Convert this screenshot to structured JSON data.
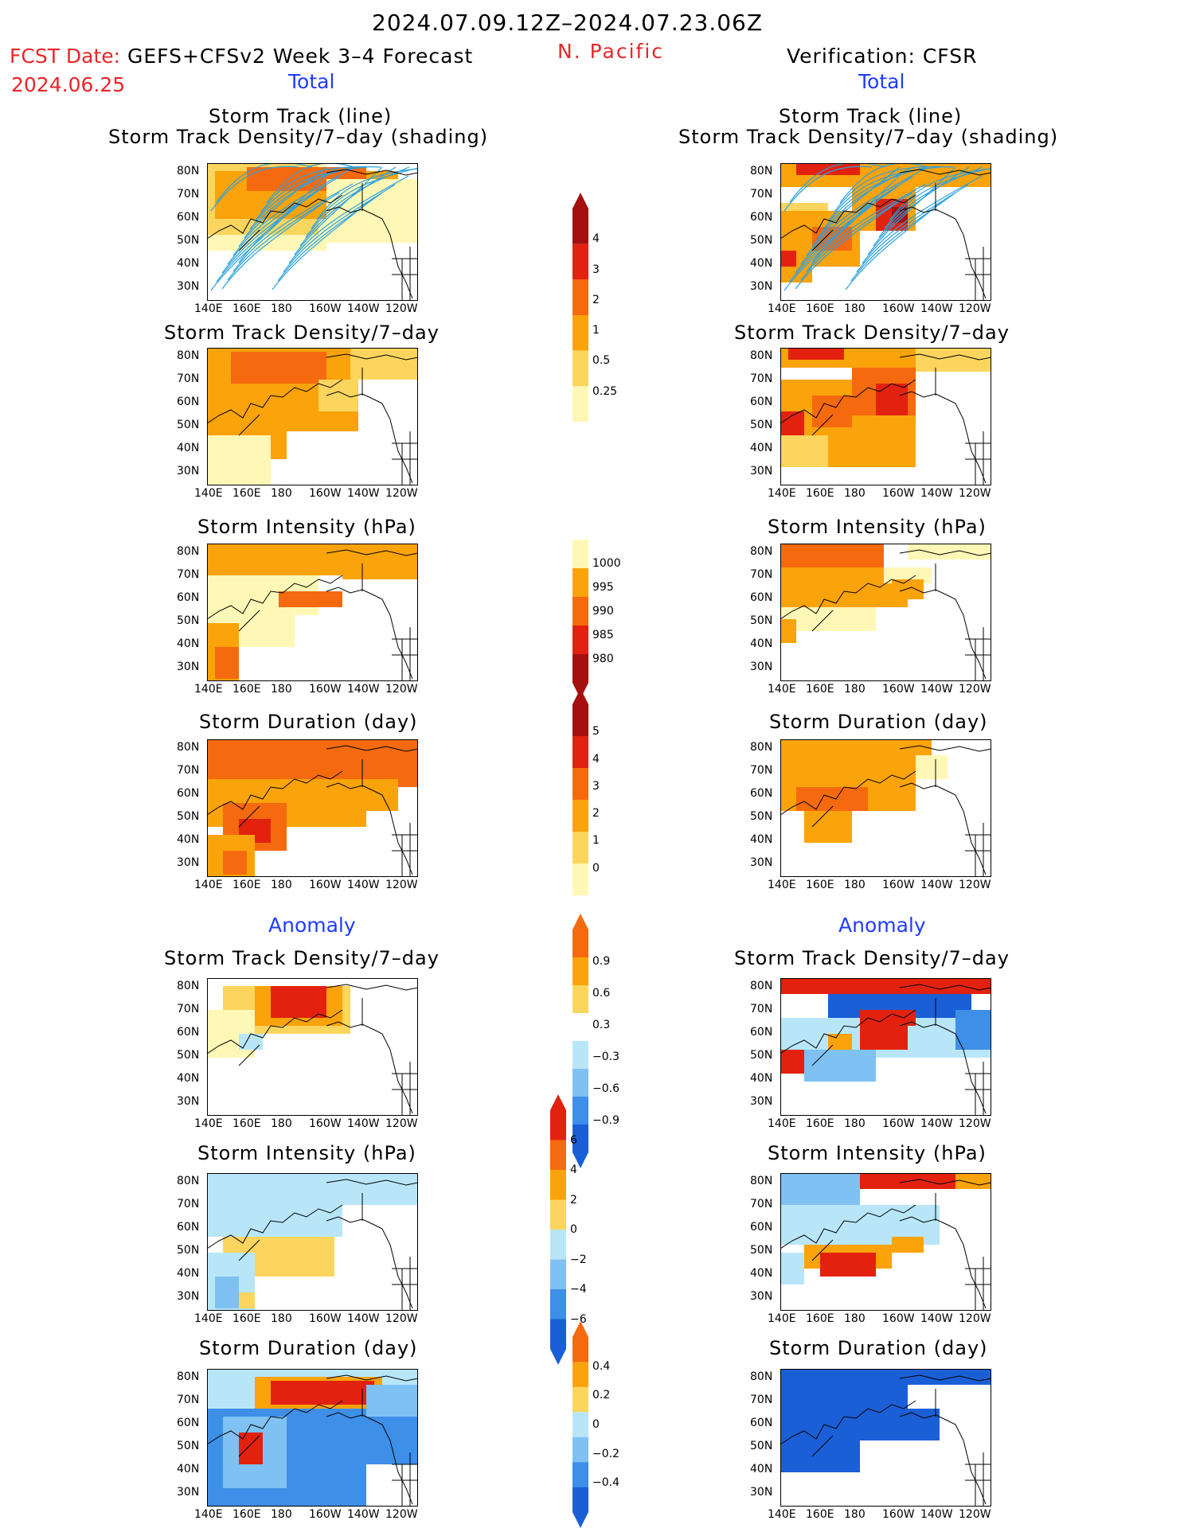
{
  "header": {
    "date_range": "2024.07.09.12Z–2024.07.23.06Z",
    "fcst_label": "FCST Date:",
    "fcst_date": "2024.06.25",
    "model": "GEFS+CFSv2 Week 3–4 Forecast",
    "region": "N. Pacific",
    "verification": "Verification: CFSR"
  },
  "sections": {
    "total": "Total",
    "anomaly": "Anomaly"
  },
  "panel_titles": {
    "track_line": "Storm Track (line)",
    "track_shading": "Storm Track Density/7–day (shading)",
    "density": "Storm Track Density/7–day",
    "intensity": "Storm Intensity (hPa)",
    "duration": "Storm Duration (day)"
  },
  "axes": {
    "lat_labels": [
      "80N",
      "70N",
      "60N",
      "50N",
      "40N",
      "30N"
    ],
    "lon_labels": [
      "140E",
      "160E",
      "180",
      "160W",
      "140W",
      "120W"
    ]
  },
  "colorbars": [
    {
      "id": "density_total",
      "ticks": [
        "4",
        "3",
        "2",
        "1",
        "0.5",
        "0.25"
      ],
      "colors": [
        "#a50f0f",
        "#e2220f",
        "#f56a0e",
        "#fba30a",
        "#fbd55e",
        "#fff7b6"
      ]
    },
    {
      "id": "intensity_total",
      "ticks": [
        "1000",
        "995",
        "990",
        "985",
        "980"
      ],
      "colors": [
        "#fff7b6",
        "#fba30a",
        "#f56a0e",
        "#e2220f",
        "#a50f0f"
      ]
    },
    {
      "id": "duration_total",
      "ticks": [
        "5",
        "4",
        "3",
        "2",
        "1",
        "0"
      ],
      "colors": [
        "#a50f0f",
        "#e2220f",
        "#f56a0e",
        "#fba30a",
        "#fbd55e",
        "#fff7b6"
      ]
    },
    {
      "id": "density_anom",
      "ticks": [
        "0.9",
        "0.6",
        "0.3",
        "−0.3",
        "−0.6",
        "−0.9"
      ],
      "colors": [
        "#f56a0e",
        "#fba30a",
        "#fbd55e",
        "#ffffff",
        "#b8e6f8",
        "#7fc1f2",
        "#3d8fe8",
        "#1a5fd6"
      ]
    },
    {
      "id": "intensity_anom",
      "ticks": [
        "6",
        "4",
        "2",
        "0",
        "−2",
        "−4",
        "−6"
      ],
      "colors": [
        "#e2220f",
        "#f56a0e",
        "#fba30a",
        "#fbd55e",
        "#b8e6f8",
        "#7fc1f2",
        "#3d8fe8",
        "#1a5fd6"
      ]
    },
    {
      "id": "duration_anom",
      "ticks": [
        "0.4",
        "0.2",
        "0",
        "−0.2",
        "−0.4"
      ],
      "colors": [
        "#f56a0e",
        "#fba30a",
        "#fbd55e",
        "#b8e6f8",
        "#7fc1f2",
        "#3d8fe8",
        "#1a5fd6"
      ]
    }
  ],
  "colors": {
    "title_red": "#e8262a",
    "title_blue": "#1f3cff",
    "track_line": "#2aa1e0"
  }
}
